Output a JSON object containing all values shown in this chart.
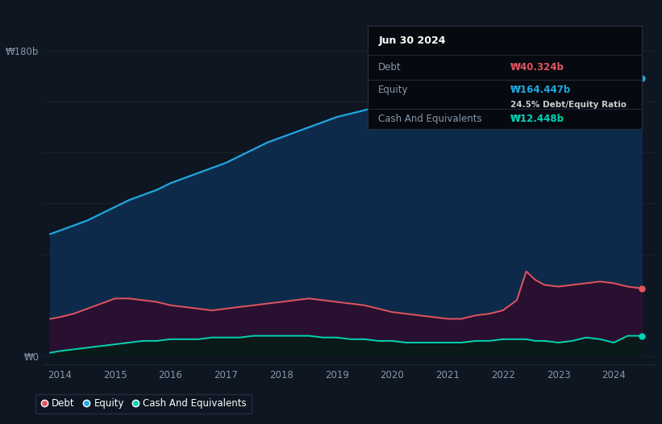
{
  "background_color": "#0e1621",
  "plot_bg_color": "#0e1621",
  "xlim": [
    2013.7,
    2024.75
  ],
  "ylim": [
    -5,
    200
  ],
  "y180_label": "₩180b",
  "y0_label": "₩0",
  "ytick_positions": [
    0,
    60,
    90,
    120,
    150,
    180
  ],
  "xtick_labels": [
    "2014",
    "2015",
    "2016",
    "2017",
    "2018",
    "2019",
    "2020",
    "2021",
    "2022",
    "2023",
    "2024"
  ],
  "xtick_positions": [
    2014,
    2015,
    2016,
    2017,
    2018,
    2019,
    2020,
    2021,
    2022,
    2023,
    2024
  ],
  "equity_color": "#1ea8e0",
  "debt_color": "#e05560",
  "cash_color": "#00d4b4",
  "equity_fill": "#0e2a4a",
  "debt_fill": "#2a1030",
  "cash_fill": "#0a1a18",
  "grid_color": "#1a2535",
  "tooltip_bg": "#06090f",
  "tooltip_border": "#2a3040",
  "tooltip_title": "Jun 30 2024",
  "tooltip_debt_label": "Debt",
  "tooltip_debt_value": "₩40.324b",
  "tooltip_equity_label": "Equity",
  "tooltip_equity_value": "₩164.447b",
  "tooltip_ratio": "24.5% Debt/Equity Ratio",
  "tooltip_cash_label": "Cash And Equivalents",
  "tooltip_cash_value": "₩12.448b",
  "legend_labels": [
    "Debt",
    "Equity",
    "Cash And Equivalents"
  ],
  "years": [
    2013.83,
    2014.0,
    2014.25,
    2014.5,
    2014.75,
    2015.0,
    2015.25,
    2015.5,
    2015.75,
    2016.0,
    2016.25,
    2016.5,
    2016.75,
    2017.0,
    2017.25,
    2017.5,
    2017.75,
    2018.0,
    2018.25,
    2018.5,
    2018.75,
    2019.0,
    2019.25,
    2019.5,
    2019.75,
    2020.0,
    2020.25,
    2020.5,
    2020.75,
    2021.0,
    2021.25,
    2021.5,
    2021.75,
    2022.0,
    2022.25,
    2022.42,
    2022.58,
    2022.75,
    2023.0,
    2023.25,
    2023.5,
    2023.75,
    2024.0,
    2024.25,
    2024.5
  ],
  "equity": [
    72,
    74,
    77,
    80,
    84,
    88,
    92,
    95,
    98,
    102,
    105,
    108,
    111,
    114,
    118,
    122,
    126,
    129,
    132,
    135,
    138,
    141,
    143,
    145,
    147,
    149,
    150,
    151,
    152,
    153,
    154,
    156,
    158,
    160,
    163,
    185,
    170,
    158,
    160,
    164,
    168,
    171,
    175,
    167,
    164
  ],
  "debt": [
    22,
    23,
    25,
    28,
    31,
    34,
    34,
    33,
    32,
    30,
    29,
    28,
    27,
    28,
    29,
    30,
    31,
    32,
    33,
    34,
    33,
    32,
    31,
    30,
    28,
    26,
    25,
    24,
    23,
    22,
    22,
    24,
    25,
    27,
    33,
    50,
    45,
    42,
    41,
    42,
    43,
    44,
    43,
    41,
    40
  ],
  "cash": [
    2,
    3,
    4,
    5,
    6,
    7,
    8,
    9,
    9,
    10,
    10,
    10,
    11,
    11,
    11,
    12,
    12,
    12,
    12,
    12,
    11,
    11,
    10,
    10,
    9,
    9,
    8,
    8,
    8,
    8,
    8,
    9,
    9,
    10,
    10,
    10,
    9,
    9,
    8,
    9,
    11,
    10,
    8,
    12,
    12
  ]
}
